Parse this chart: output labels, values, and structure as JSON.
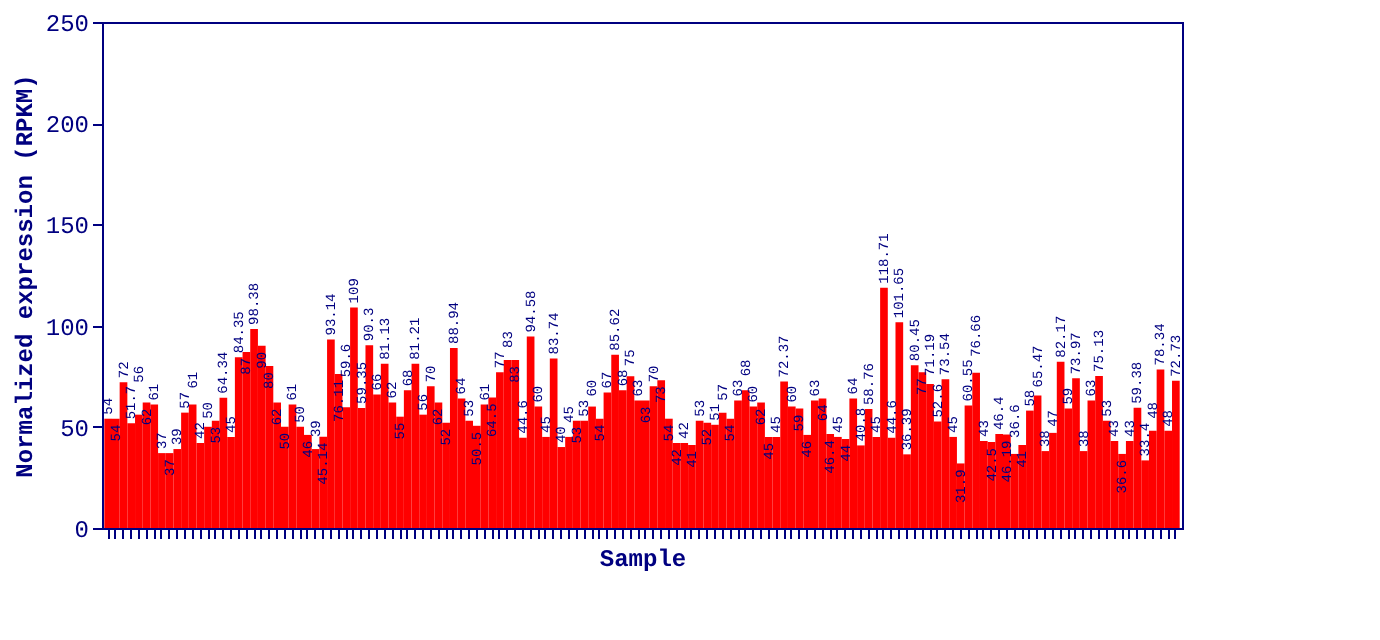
{
  "chart_data": {
    "type": "bar",
    "xlabel": "Sample",
    "ylabel": "Normalized expression (RPKM)",
    "color": "#ff0000",
    "ylim": [
      0,
      250
    ],
    "yticks": [
      0,
      50,
      100,
      150,
      200,
      250
    ],
    "grid": false,
    "data_labels": true,
    "values": [
      54,
      54,
      72,
      51.7,
      56,
      62,
      61,
      37,
      37,
      39,
      57,
      61,
      42,
      50,
      53,
      64.34,
      45,
      84.35,
      87,
      98.38,
      90,
      80,
      62,
      50,
      61,
      50,
      46,
      39,
      45.14,
      93.14,
      76.11,
      59.6,
      109,
      59.35,
      90.3,
      66,
      81.13,
      62,
      55,
      68,
      81.21,
      56,
      70,
      62,
      52,
      88.94,
      64,
      53,
      50.5,
      61,
      64.5,
      77,
      83,
      83,
      44.6,
      94.58,
      60,
      45,
      83.74,
      40,
      45,
      53,
      53,
      60,
      54,
      67,
      85.62,
      68,
      75,
      63,
      63,
      70,
      73,
      54,
      42,
      42,
      41,
      53,
      52,
      51,
      57,
      54,
      63,
      68,
      60,
      62,
      45,
      45,
      72.37,
      60,
      59,
      46,
      63,
      64,
      46.4,
      45,
      44,
      64,
      40.8,
      58.76,
      45,
      118.71,
      44.6,
      101.65,
      36.39,
      80.45,
      77,
      71.19,
      52.6,
      73.54,
      45,
      31.9,
      60.55,
      76.66,
      43,
      42.5,
      46.4,
      46.19,
      36.6,
      41,
      58,
      65.47,
      38,
      47,
      82.17,
      59,
      73.97,
      38,
      63,
      75.13,
      53,
      43,
      36.6,
      43,
      59.38,
      33.4,
      48,
      78.34,
      48,
      72.73
    ]
  }
}
